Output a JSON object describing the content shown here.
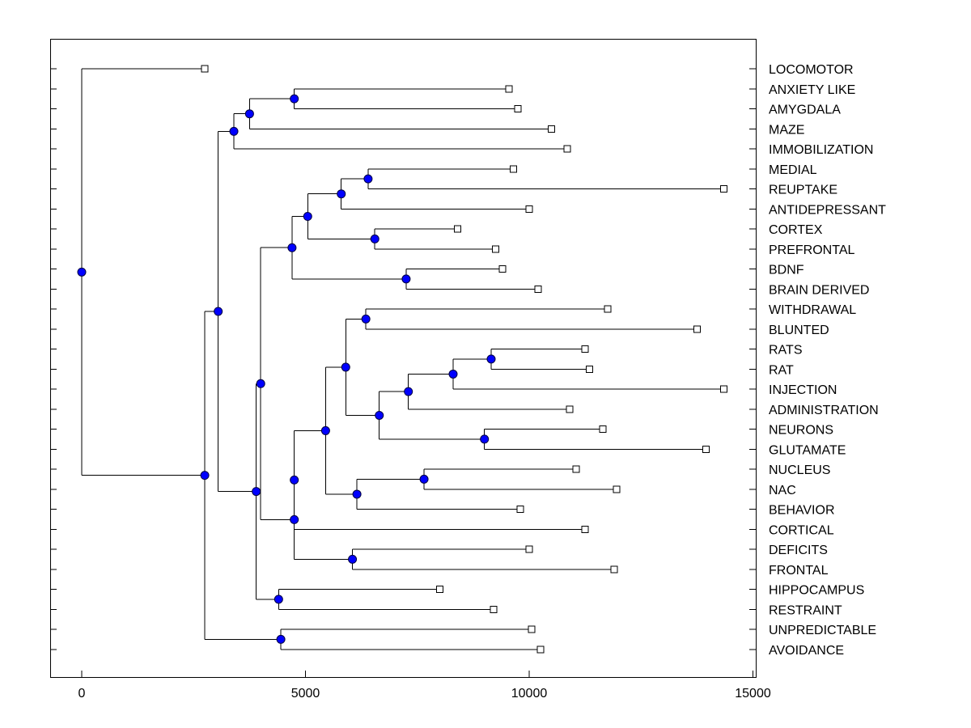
{
  "chart_data": {
    "type": "dendrogram",
    "title": "",
    "xlabel": "",
    "ylabel": "",
    "xlim": [
      -700,
      15000
    ],
    "x_ticks": [
      {
        "value": 0,
        "label": "0"
      },
      {
        "value": 5000,
        "label": "5000"
      },
      {
        "value": 10000,
        "label": "10000"
      },
      {
        "value": 15000,
        "label": "15000"
      }
    ],
    "grid": false,
    "leaves": [
      {
        "label": "LOCOMOTOR",
        "value": 2750
      },
      {
        "label": "ANXIETY LIKE",
        "value": 9550
      },
      {
        "label": "AMYGDALA",
        "value": 9750
      },
      {
        "label": "MAZE",
        "value": 10500
      },
      {
        "label": "IMMOBILIZATION",
        "value": 10850
      },
      {
        "label": "MEDIAL",
        "value": 9650
      },
      {
        "label": "REUPTAKE",
        "value": 14350
      },
      {
        "label": "ANTIDEPRESSANT",
        "value": 10000
      },
      {
        "label": "CORTEX",
        "value": 8400
      },
      {
        "label": "PREFRONTAL",
        "value": 9250
      },
      {
        "label": "BDNF",
        "value": 9400
      },
      {
        "label": "BRAIN DERIVED",
        "value": 10200
      },
      {
        "label": "WITHDRAWAL",
        "value": 11750
      },
      {
        "label": "BLUNTED",
        "value": 13750
      },
      {
        "label": "RATS",
        "value": 11250
      },
      {
        "label": "RAT",
        "value": 11350
      },
      {
        "label": "INJECTION",
        "value": 14350
      },
      {
        "label": "ADMINISTRATION",
        "value": 10900
      },
      {
        "label": "NEURONS",
        "value": 11650
      },
      {
        "label": "GLUTAMATE",
        "value": 13950
      },
      {
        "label": "NUCLEUS",
        "value": 11050
      },
      {
        "label": "NAC",
        "value": 11950
      },
      {
        "label": "BEHAVIOR",
        "value": 9800
      },
      {
        "label": "CORTICAL",
        "value": 11250
      },
      {
        "label": "DEFICITS",
        "value": 10000
      },
      {
        "label": "FRONTAL",
        "value": 11900
      },
      {
        "label": "HIPPOCAMPUS",
        "value": 8000
      },
      {
        "label": "RESTRAINT",
        "value": 9200
      },
      {
        "label": "UNPREDICTABLE",
        "value": 10050
      },
      {
        "label": "AVOIDANCE",
        "value": 10250
      }
    ],
    "merges": [
      {
        "id": "n1",
        "children": [
          "L1",
          "L2"
        ],
        "value": 4750
      },
      {
        "id": "n2",
        "children": [
          "n1",
          "L3"
        ],
        "value": 3750
      },
      {
        "id": "n3",
        "children": [
          "n2",
          "L4"
        ],
        "value": 3400
      },
      {
        "id": "n4",
        "children": [
          "L5",
          "L6"
        ],
        "value": 6400
      },
      {
        "id": "n5",
        "children": [
          "n4",
          "L7"
        ],
        "value": 5800
      },
      {
        "id": "n6",
        "children": [
          "L8",
          "L9"
        ],
        "value": 6550
      },
      {
        "id": "n7",
        "children": [
          "n5",
          "n6"
        ],
        "value": 5050
      },
      {
        "id": "n8",
        "children": [
          "L10",
          "L11"
        ],
        "value": 7250
      },
      {
        "id": "n9",
        "children": [
          "n7",
          "n8"
        ],
        "value": 4700
      },
      {
        "id": "n10",
        "children": [
          "L12",
          "L13"
        ],
        "value": 6350
      },
      {
        "id": "n11",
        "children": [
          "L14",
          "L15"
        ],
        "value": 9150
      },
      {
        "id": "n12",
        "children": [
          "n11",
          "L16"
        ],
        "value": 8300
      },
      {
        "id": "n13",
        "children": [
          "n12",
          "L17"
        ],
        "value": 7300
      },
      {
        "id": "n14",
        "children": [
          "L18",
          "L19"
        ],
        "value": 9000
      },
      {
        "id": "n15",
        "children": [
          "n13",
          "n14"
        ],
        "value": 6650
      },
      {
        "id": "n16",
        "children": [
          "n10",
          "n15"
        ],
        "value": 5900
      },
      {
        "id": "n17",
        "children": [
          "L20",
          "L21"
        ],
        "value": 7650
      },
      {
        "id": "n18",
        "children": [
          "n17",
          "L22"
        ],
        "value": 6150
      },
      {
        "id": "n19",
        "children": [
          "n16",
          "n18"
        ],
        "value": 5450
      },
      {
        "id": "n20",
        "children": [
          "n19",
          "L23"
        ],
        "value": 4750
      },
      {
        "id": "n21",
        "children": [
          "L24",
          "L25"
        ],
        "value": 6050
      },
      {
        "id": "n22",
        "children": [
          "n20",
          "n21"
        ],
        "value": 4750
      },
      {
        "id": "n23",
        "children": [
          "n9",
          "n22"
        ],
        "value": 4000
      },
      {
        "id": "n24",
        "children": [
          "L26",
          "L27"
        ],
        "value": 4400
      },
      {
        "id": "n25",
        "children": [
          "n23",
          "n24"
        ],
        "value": 3900
      },
      {
        "id": "n26",
        "children": [
          "n3",
          "n25"
        ],
        "value": 3050
      },
      {
        "id": "n27",
        "children": [
          "L28",
          "L29"
        ],
        "value": 4450
      },
      {
        "id": "n28",
        "children": [
          "n26",
          "n27"
        ],
        "value": 2750
      },
      {
        "id": "n29",
        "children": [
          "L0",
          "n28"
        ],
        "value": 0
      }
    ]
  }
}
